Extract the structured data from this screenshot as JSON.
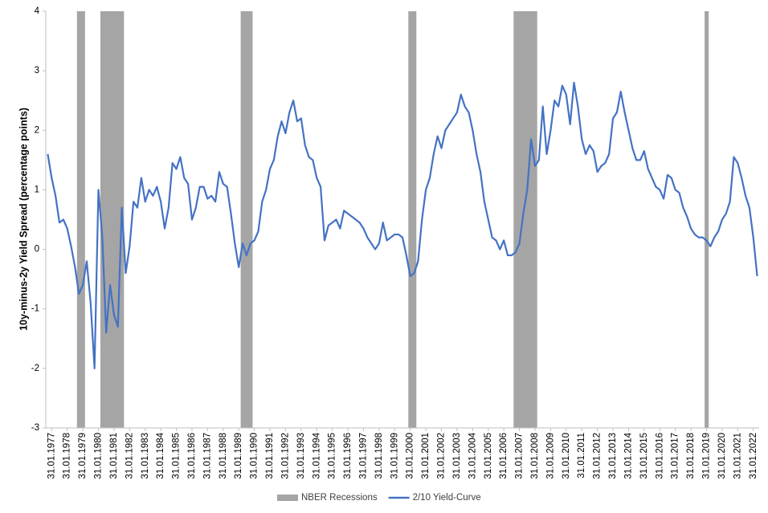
{
  "chart_data": {
    "type": "line",
    "ylabel": "10y-minus-2y  Yield Spread (percentage points)",
    "ylim": [
      -3,
      4
    ],
    "yticks": [
      -3,
      -2,
      -1,
      0,
      1,
      2,
      3,
      4
    ],
    "grid": false,
    "legend": "bottom",
    "categories": [
      null,
      "31.01.1977",
      null,
      null,
      null,
      "31.01.1978",
      null,
      null,
      null,
      "31.01.1979",
      null,
      null,
      null,
      "31.01.1980",
      null,
      null,
      null,
      "31.01.1981",
      null,
      null,
      null,
      "31.01.1982",
      null,
      null,
      null,
      "31.01.1983",
      null,
      null,
      null,
      "31.01.1984",
      null,
      null,
      null,
      "31.01.1985",
      null,
      null,
      null,
      "31.01.1986",
      null,
      null,
      null,
      "31.01.1987",
      null,
      null,
      null,
      "31.01.1988",
      null,
      null,
      null,
      "31.01.1989",
      null,
      null,
      null,
      "31.01.1990",
      null,
      null,
      null,
      "31.01.1991",
      null,
      null,
      null,
      "31.01.1992",
      null,
      null,
      null,
      "31.01.1993",
      null,
      null,
      null,
      "31.01.1994",
      null,
      null,
      null,
      "31.01.1995",
      null,
      null,
      null,
      "31.01.1996",
      null,
      null,
      null,
      "31.01.1997",
      null,
      null,
      null,
      "31.01.1998",
      null,
      null,
      null,
      "31.01.1999",
      null,
      null,
      null,
      "31.01.2000",
      null,
      null,
      null,
      "31.01.2001",
      null,
      null,
      null,
      "31.01.2002",
      null,
      null,
      null,
      "31.01.2003",
      null,
      null,
      null,
      "31.01.2004",
      null,
      null,
      null,
      "31.01.2005",
      null,
      null,
      null,
      "31.01.2006",
      null,
      null,
      null,
      "31.01.2007",
      null,
      null,
      null,
      "31.01.2008",
      null,
      null,
      null,
      "31.01.2009",
      null,
      null,
      null,
      "31.01.2010",
      null,
      null,
      null,
      "31.01.2011",
      null,
      null,
      null,
      "31.01.2012",
      null,
      null,
      null,
      "31.01.2013",
      null,
      null,
      null,
      "31.01.2014",
      null,
      null,
      null,
      "31.01.2015",
      null,
      null,
      null,
      "31.01.2016",
      null,
      null,
      null,
      "31.01.2017",
      null,
      null,
      null,
      "31.01.2018",
      null,
      null,
      null,
      "31.01.2019",
      null,
      null,
      null,
      "31.01.2020",
      null,
      null,
      null,
      "31.01.2021",
      null,
      null,
      null,
      "31.01.2022",
      null
    ],
    "series": [
      {
        "name": "NBER Recessions",
        "type": "bar",
        "color": "#a5a5a5",
        "values": [
          null,
          null,
          null,
          null,
          null,
          null,
          null,
          null,
          4,
          4,
          null,
          null,
          null,
          null,
          4,
          4,
          4,
          4,
          4,
          4,
          null,
          null,
          null,
          null,
          null,
          null,
          null,
          null,
          null,
          null,
          null,
          null,
          null,
          null,
          null,
          null,
          null,
          null,
          null,
          null,
          null,
          null,
          null,
          null,
          null,
          null,
          null,
          null,
          null,
          null,
          4,
          4,
          4,
          null,
          null,
          null,
          null,
          null,
          null,
          null,
          null,
          null,
          null,
          null,
          null,
          null,
          null,
          null,
          null,
          null,
          null,
          null,
          null,
          null,
          null,
          null,
          null,
          null,
          null,
          null,
          null,
          null,
          null,
          null,
          null,
          null,
          null,
          null,
          null,
          null,
          null,
          null,
          null,
          4,
          4,
          null,
          null,
          null,
          null,
          null,
          null,
          null,
          null,
          null,
          null,
          null,
          null,
          null,
          null,
          null,
          null,
          null,
          null,
          null,
          null,
          null,
          null,
          null,
          null,
          null,
          4,
          4,
          4,
          4,
          4,
          4,
          null,
          null,
          null,
          null,
          null,
          null,
          null,
          null,
          null,
          null,
          null,
          null,
          null,
          null,
          null,
          null,
          null,
          null,
          null,
          null,
          null,
          null,
          null,
          null,
          null,
          null,
          null,
          null,
          null,
          null,
          null,
          null,
          null,
          null,
          null,
          null,
          null,
          null,
          null,
          null,
          null,
          null,
          null,
          4,
          null,
          null,
          null,
          null,
          null,
          null,
          null,
          null,
          null,
          null,
          null,
          null,
          null
        ]
      },
      {
        "name": "2/10 Yield-Curve",
        "type": "line",
        "color": "#4472c4",
        "values": [
          1.6,
          1.2,
          0.9,
          0.45,
          0.5,
          0.35,
          0.05,
          -0.3,
          -0.75,
          -0.6,
          -0.2,
          -0.9,
          -2.0,
          1.0,
          0.2,
          -1.4,
          -0.6,
          -1.1,
          -1.3,
          0.7,
          -0.4,
          0.05,
          0.8,
          0.7,
          1.2,
          0.8,
          1.0,
          0.9,
          1.05,
          0.8,
          0.35,
          0.7,
          1.45,
          1.35,
          1.55,
          1.2,
          1.1,
          0.5,
          0.7,
          1.05,
          1.05,
          0.85,
          0.9,
          0.8,
          1.3,
          1.1,
          1.05,
          0.6,
          0.1,
          -0.3,
          0.1,
          -0.1,
          0.1,
          0.15,
          0.3,
          0.8,
          1.0,
          1.35,
          1.5,
          1.9,
          2.15,
          1.95,
          2.3,
          2.5,
          2.15,
          2.2,
          1.75,
          1.55,
          1.5,
          1.2,
          1.05,
          0.15,
          0.4,
          0.45,
          0.5,
          0.35,
          0.65,
          0.6,
          0.55,
          0.5,
          0.45,
          0.35,
          0.2,
          0.1,
          0.0,
          0.1,
          0.45,
          0.15,
          0.2,
          0.25,
          0.25,
          0.2,
          -0.1,
          -0.45,
          -0.4,
          -0.2,
          0.5,
          1.0,
          1.2,
          1.6,
          1.9,
          1.7,
          2.0,
          2.1,
          2.2,
          2.3,
          2.6,
          2.4,
          2.3,
          2.0,
          1.6,
          1.3,
          0.8,
          0.5,
          0.2,
          0.15,
          0.0,
          0.15,
          -0.1,
          -0.1,
          -0.05,
          0.1,
          0.6,
          1.0,
          1.85,
          1.4,
          1.5,
          2.4,
          1.6,
          2.0,
          2.5,
          2.4,
          2.75,
          2.6,
          2.1,
          2.8,
          2.4,
          1.85,
          1.6,
          1.75,
          1.65,
          1.3,
          1.4,
          1.45,
          1.6,
          2.2,
          2.3,
          2.65,
          2.3,
          2.0,
          1.7,
          1.5,
          1.5,
          1.65,
          1.35,
          1.2,
          1.05,
          1.0,
          0.85,
          1.25,
          1.2,
          1.0,
          0.95,
          0.7,
          0.55,
          0.35,
          0.25,
          0.2,
          0.2,
          0.15,
          0.05,
          0.2,
          0.3,
          0.5,
          0.6,
          0.8,
          1.55,
          1.45,
          1.2,
          0.9,
          0.7,
          0.2,
          -0.45
        ]
      }
    ]
  }
}
